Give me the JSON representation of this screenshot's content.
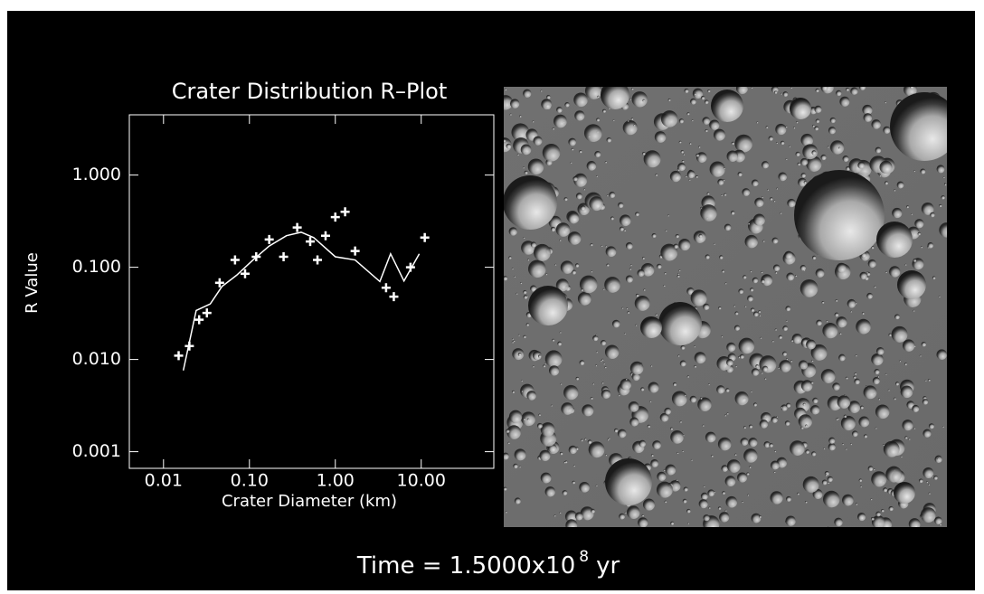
{
  "chart_data": {
    "type": "scatter",
    "title": "Crater Distribution R–Plot",
    "x_label": "Crater Diameter (km)",
    "y_label": "R Value",
    "xscale": "log",
    "yscale": "log",
    "xlim": [
      0.004,
      70
    ],
    "ylim": [
      0.00066,
      4.5
    ],
    "xticks": [
      0.01,
      {
        "value": 0.1,
        "label": "0.10"
      },
      {
        "value": 1,
        "label": "1.00"
      },
      {
        "value": 10,
        "label": "10.00"
      }
    ],
    "yticks": [
      {
        "value": 1,
        "label": "1.000"
      },
      {
        "value": 0.1,
        "label": "0.100"
      },
      {
        "value": 0.01,
        "label": "0.010"
      },
      0.001
    ],
    "series": [
      {
        "style": "markers",
        "marker": "+",
        "color": "#ffffff",
        "x": [
          0.015,
          0.02,
          0.026,
          0.032,
          0.045,
          0.068,
          0.089,
          0.12,
          0.17,
          0.25,
          0.36,
          0.51,
          0.62,
          0.77,
          1.0,
          1.3,
          1.7,
          3.9,
          4.8,
          7.5,
          11
        ],
        "values": [
          0.011,
          0.014,
          0.027,
          0.032,
          0.068,
          0.12,
          0.085,
          0.13,
          0.2,
          0.13,
          0.27,
          0.19,
          0.12,
          0.22,
          0.35,
          0.4,
          0.15,
          0.06,
          0.048,
          0.1,
          0.21
        ]
      },
      {
        "style": "line",
        "color": "#ffffff",
        "x": [
          0.017,
          0.024,
          0.035,
          0.048,
          0.071,
          0.11,
          0.17,
          0.27,
          0.4,
          0.56,
          1.0,
          1.7,
          3.3,
          4.4,
          6.3,
          9.5
        ],
        "values": [
          0.0076,
          0.034,
          0.04,
          0.062,
          0.082,
          0.12,
          0.17,
          0.22,
          0.24,
          0.21,
          0.13,
          0.12,
          0.07,
          0.14,
          0.071,
          0.14
        ]
      }
    ]
  },
  "caption": {
    "prefix": "Time = 1.5000x10",
    "exponent": "8",
    "unit": "yr"
  }
}
